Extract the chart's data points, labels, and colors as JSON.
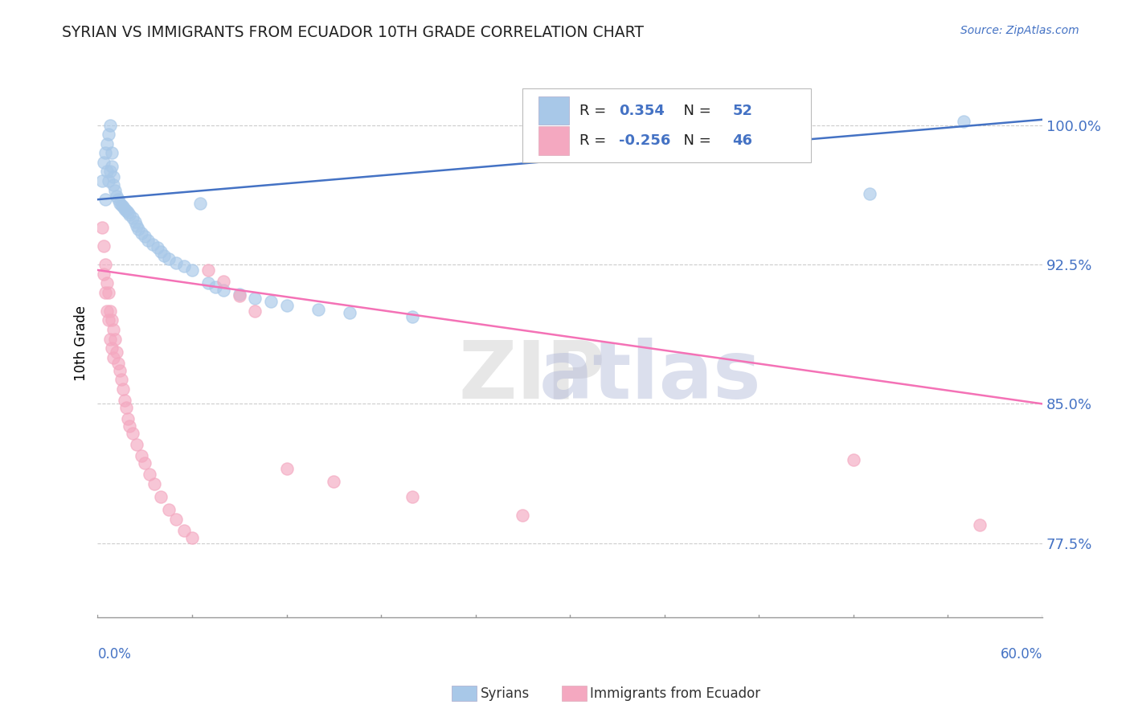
{
  "title": "SYRIAN VS IMMIGRANTS FROM ECUADOR 10TH GRADE CORRELATION CHART",
  "source": "Source: ZipAtlas.com",
  "ylabel": "10th Grade",
  "ytick_labels": [
    "77.5%",
    "85.0%",
    "92.5%",
    "100.0%"
  ],
  "ytick_values": [
    0.775,
    0.85,
    0.925,
    1.0
  ],
  "xlim": [
    0.0,
    0.6
  ],
  "ylim": [
    0.735,
    1.03
  ],
  "r_syrian": "0.354",
  "n_syrian": "52",
  "r_ecuador": "-0.256",
  "n_ecuador": "46",
  "syrian_color": "#A8C8E8",
  "ecuador_color": "#F4A8C0",
  "line_syrian_color": "#4472C4",
  "line_ecuador_color": "#F472B6",
  "syr_line_y0": 0.96,
  "syr_line_y1": 1.003,
  "ecu_line_y0": 0.922,
  "ecu_line_y1": 0.85,
  "syrian_x": [
    0.003,
    0.004,
    0.005,
    0.005,
    0.006,
    0.006,
    0.007,
    0.007,
    0.008,
    0.008,
    0.009,
    0.009,
    0.01,
    0.01,
    0.011,
    0.012,
    0.013,
    0.014,
    0.015,
    0.016,
    0.017,
    0.018,
    0.019,
    0.02,
    0.022,
    0.024,
    0.025,
    0.026,
    0.028,
    0.03,
    0.032,
    0.035,
    0.038,
    0.04,
    0.042,
    0.045,
    0.05,
    0.055,
    0.06,
    0.065,
    0.07,
    0.075,
    0.08,
    0.09,
    0.1,
    0.11,
    0.12,
    0.14,
    0.16,
    0.2,
    0.49,
    0.55
  ],
  "syrian_y": [
    0.97,
    0.98,
    0.96,
    0.985,
    0.975,
    0.99,
    0.97,
    0.995,
    0.975,
    1.0,
    0.985,
    0.978,
    0.972,
    0.968,
    0.965,
    0.962,
    0.96,
    0.958,
    0.957,
    0.956,
    0.955,
    0.954,
    0.953,
    0.952,
    0.95,
    0.948,
    0.946,
    0.944,
    0.942,
    0.94,
    0.938,
    0.936,
    0.934,
    0.932,
    0.93,
    0.928,
    0.926,
    0.924,
    0.922,
    0.958,
    0.915,
    0.913,
    0.911,
    0.909,
    0.907,
    0.905,
    0.903,
    0.901,
    0.899,
    0.897,
    0.963,
    1.002
  ],
  "ecuador_x": [
    0.003,
    0.004,
    0.004,
    0.005,
    0.005,
    0.006,
    0.006,
    0.007,
    0.007,
    0.008,
    0.008,
    0.009,
    0.009,
    0.01,
    0.01,
    0.011,
    0.012,
    0.013,
    0.014,
    0.015,
    0.016,
    0.017,
    0.018,
    0.019,
    0.02,
    0.022,
    0.025,
    0.028,
    0.03,
    0.033,
    0.036,
    0.04,
    0.045,
    0.05,
    0.055,
    0.06,
    0.07,
    0.08,
    0.09,
    0.1,
    0.12,
    0.15,
    0.2,
    0.27,
    0.48,
    0.56
  ],
  "ecuador_y": [
    0.945,
    0.92,
    0.935,
    0.91,
    0.925,
    0.915,
    0.9,
    0.91,
    0.895,
    0.9,
    0.885,
    0.895,
    0.88,
    0.89,
    0.875,
    0.885,
    0.878,
    0.872,
    0.868,
    0.863,
    0.858,
    0.852,
    0.848,
    0.842,
    0.838,
    0.834,
    0.828,
    0.822,
    0.818,
    0.812,
    0.807,
    0.8,
    0.793,
    0.788,
    0.782,
    0.778,
    0.922,
    0.916,
    0.908,
    0.9,
    0.815,
    0.808,
    0.8,
    0.79,
    0.82,
    0.785
  ]
}
